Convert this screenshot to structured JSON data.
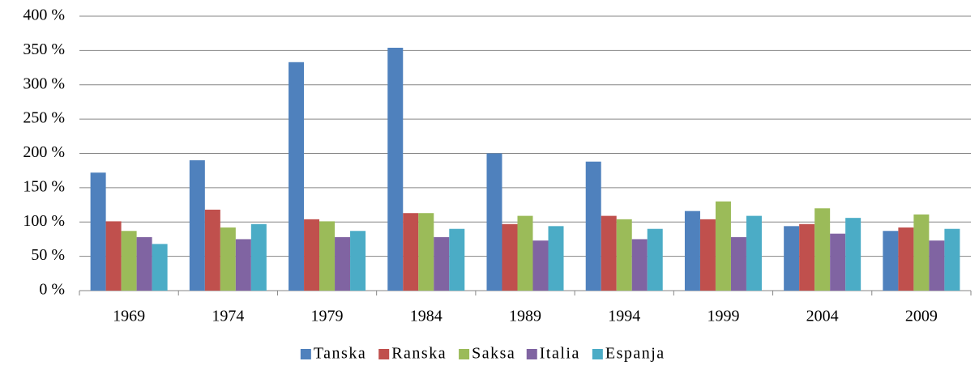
{
  "chart_data": {
    "type": "bar",
    "categories": [
      "1969",
      "1974",
      "1979",
      "1984",
      "1989",
      "1994",
      "1999",
      "2004",
      "2009"
    ],
    "series": [
      {
        "name": "Tanska",
        "color": "#4f81bd",
        "values": [
          172,
          190,
          333,
          354,
          200,
          188,
          116,
          94,
          87
        ]
      },
      {
        "name": "Ranska",
        "color": "#c0504d",
        "values": [
          101,
          118,
          104,
          113,
          97,
          109,
          104,
          97,
          92
        ]
      },
      {
        "name": "Saksa",
        "color": "#9bbb59",
        "values": [
          87,
          92,
          101,
          113,
          109,
          104,
          130,
          120,
          111
        ]
      },
      {
        "name": "Italia",
        "color": "#8064a2",
        "values": [
          78,
          75,
          78,
          78,
          73,
          75,
          78,
          83,
          73
        ]
      },
      {
        "name": "Espanja",
        "color": "#4bacc6",
        "values": [
          68,
          97,
          87,
          90,
          94,
          90,
          109,
          106,
          90
        ]
      }
    ],
    "ylim": [
      0,
      400
    ],
    "yticks": [
      {
        "value": 0,
        "label": "0 %"
      },
      {
        "value": 50,
        "label": "50 %"
      },
      {
        "value": 100,
        "label": "100 %"
      },
      {
        "value": 150,
        "label": "150 %"
      },
      {
        "value": 200,
        "label": "200 %"
      },
      {
        "value": 250,
        "label": "250 %"
      },
      {
        "value": 300,
        "label": "300 %"
      },
      {
        "value": 350,
        "label": "350 %"
      },
      {
        "value": 400,
        "label": "400 %"
      }
    ],
    "grid": true,
    "legend": "bottom"
  }
}
